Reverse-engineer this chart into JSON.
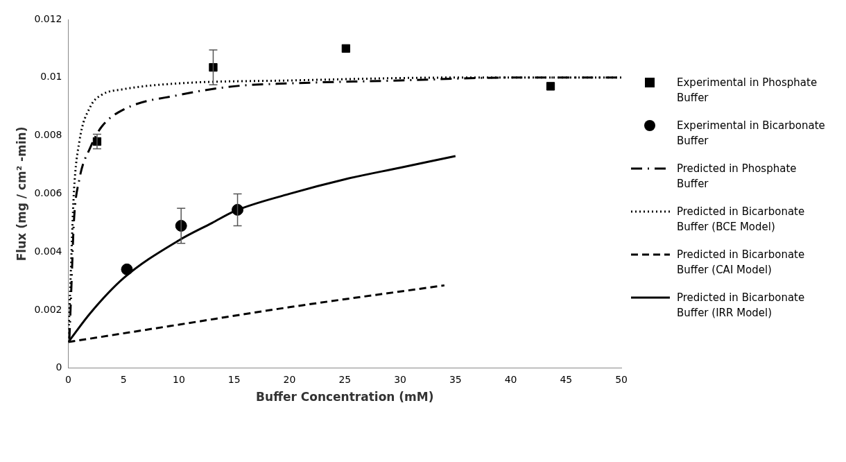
{
  "chart_data": {
    "type": "line",
    "xlabel": "Buffer Concentration (mM)",
    "ylabel": "Flux (mg / cm² -min)",
    "xlim": [
      0,
      50
    ],
    "xticks": [
      0,
      5,
      10,
      15,
      20,
      25,
      30,
      35,
      40,
      45,
      50
    ],
    "ylim": [
      0,
      0.012
    ],
    "yticks": [
      0,
      0.002,
      0.004,
      0.006,
      0.008,
      0.01,
      0.012
    ],
    "grid": false,
    "legend": "right",
    "series": [
      {
        "name": "Experimental in Phosphate Buffer",
        "type": "scatter",
        "marker": "square",
        "color": "#000000",
        "x": [
          2.6,
          13.1,
          25.1,
          43.6
        ],
        "values": [
          0.0078,
          0.01035,
          0.011,
          0.0097
        ],
        "errors": [
          0.00025,
          0.0006,
          null,
          null
        ]
      },
      {
        "name": "Experimental in Bicarbonate Buffer",
        "type": "scatter",
        "marker": "circle",
        "color": "#000000",
        "x": [
          5.3,
          10.2,
          15.3
        ],
        "values": [
          0.0034,
          0.0049,
          0.00545
        ],
        "errors": [
          null,
          0.0006,
          0.00055
        ]
      },
      {
        "name": "Predicted in Phosphate Buffer",
        "line_style": "dashdot",
        "color": "#000000",
        "x": [
          0.1,
          0.3,
          0.5,
          1,
          2,
          3,
          5,
          10,
          15,
          20,
          30,
          40,
          50
        ],
        "values": [
          0.001,
          0.003,
          0.005,
          0.0065,
          0.0076,
          0.0083,
          0.0089,
          0.0094,
          0.0097,
          0.0098,
          0.0099,
          0.01,
          0.01
        ]
      },
      {
        "name": "Predicted in Bicarbonate Buffer (BCE Model)",
        "line_style": "dotted",
        "color": "#000000",
        "x": [
          0,
          0.2,
          0.5,
          1,
          2,
          3,
          5,
          10,
          20,
          35,
          50
        ],
        "values": [
          0.0009,
          0.003,
          0.006,
          0.0078,
          0.009,
          0.0094,
          0.0096,
          0.0098,
          0.0099,
          0.01,
          0.01
        ]
      },
      {
        "name": "Predicted in Bicarbonate Buffer (CAI Model)",
        "line_style": "dashed",
        "color": "#000000",
        "x": [
          0,
          10,
          20,
          34
        ],
        "values": [
          0.0009,
          0.0015,
          0.0021,
          0.00285
        ]
      },
      {
        "name": "Predicted in Bicarbonate Buffer (IRR Model)",
        "line_style": "solid",
        "color": "#000000",
        "x": [
          0,
          2,
          5,
          10,
          13,
          15,
          20,
          25,
          30,
          35
        ],
        "values": [
          0.0009,
          0.0019,
          0.0031,
          0.0044,
          0.005,
          0.0054,
          0.006,
          0.0065,
          0.0069,
          0.0073
        ]
      }
    ]
  }
}
